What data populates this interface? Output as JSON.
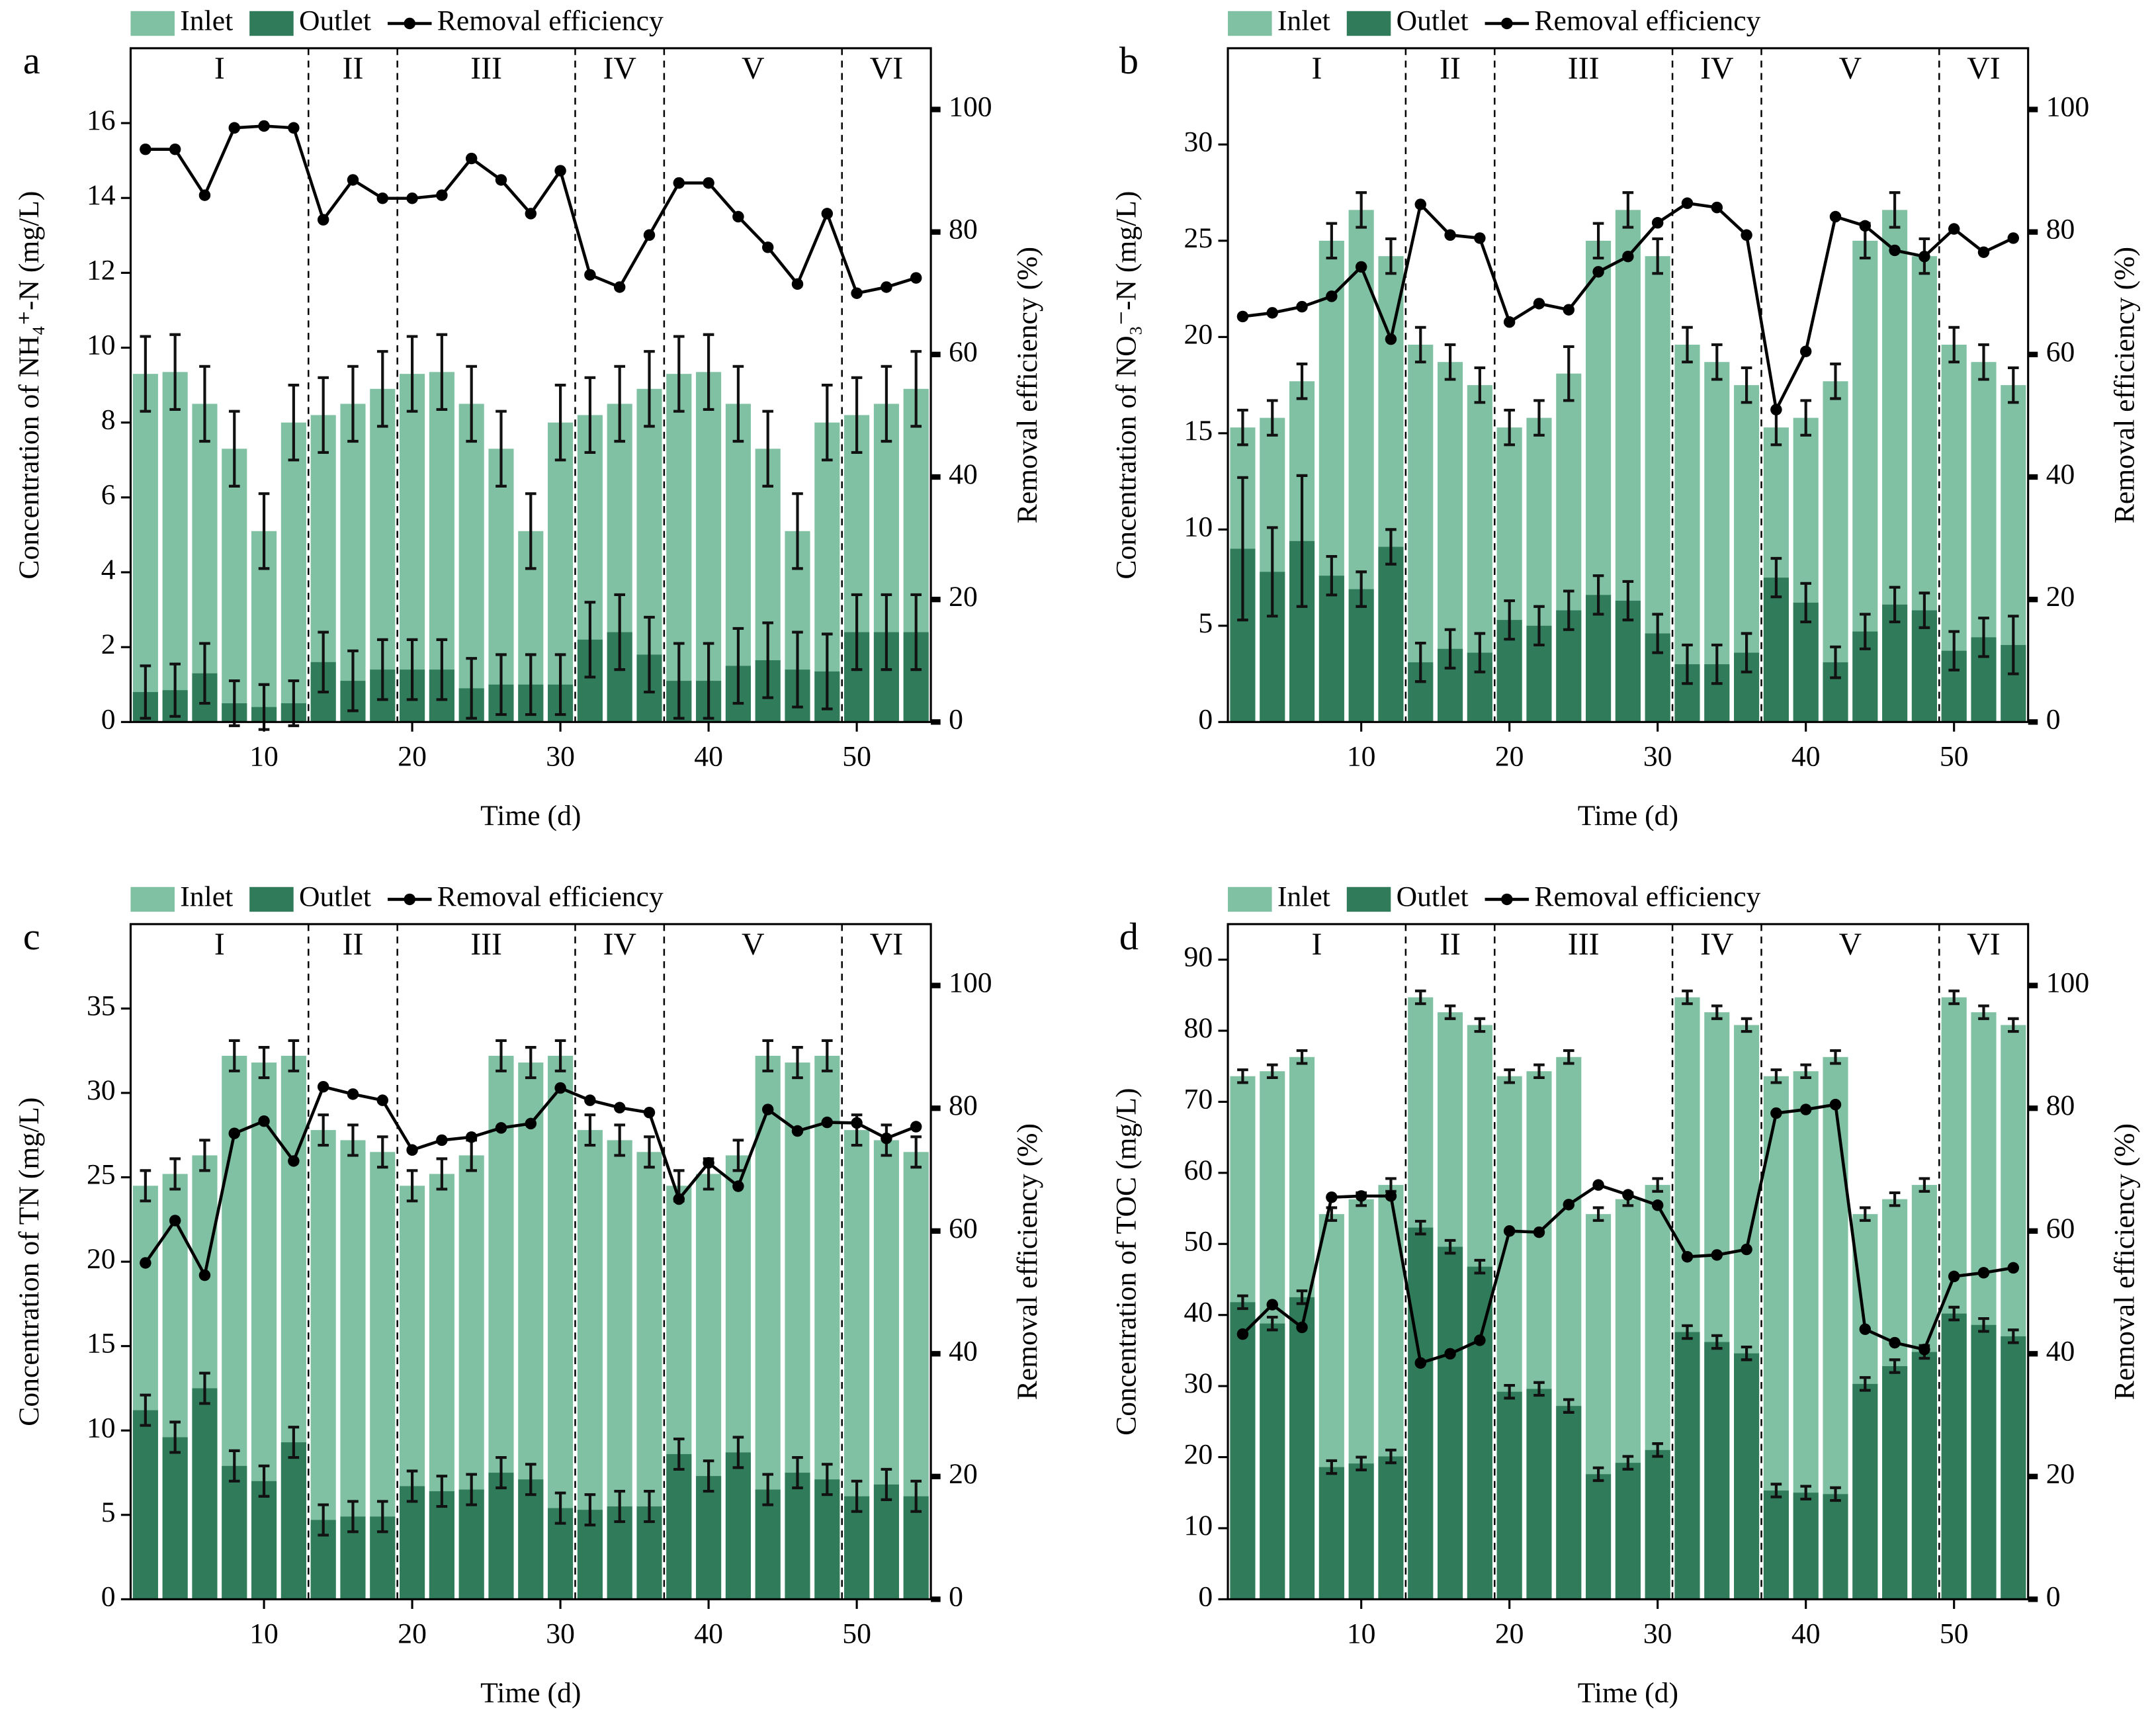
{
  "chart_data": [
    {
      "type": "bar",
      "letter": "a",
      "x": [
        2,
        4,
        6,
        8,
        10,
        12,
        14,
        16,
        18,
        20,
        22,
        24,
        26,
        28,
        30,
        32,
        34,
        36,
        38,
        40,
        42,
        44,
        46,
        48,
        50,
        52,
        54
      ],
      "xlim": [
        1,
        55
      ],
      "xticks": [
        10,
        20,
        30,
        40,
        50
      ],
      "ylim": [
        0,
        18
      ],
      "yticks": [
        0,
        2,
        4,
        6,
        8,
        10,
        12,
        14,
        16
      ],
      "y2lim": [
        0,
        110
      ],
      "y2ticks": [
        0,
        20,
        40,
        60,
        80,
        100
      ],
      "xlabel": "Time (d)",
      "ylabel": "Concentration of NH₄⁺-N (mg/L)",
      "y2label": "Removal efficiency (%)",
      "phases": [
        "I",
        "II",
        "III",
        "IV",
        "V",
        "VI"
      ],
      "phase_bounds": [
        13,
        19,
        31,
        37,
        49
      ],
      "series": [
        {
          "name": "Inlet",
          "color": "#80c1a3",
          "values": [
            9.3,
            9.35,
            8.5,
            7.3,
            5.1,
            8.0,
            8.2,
            8.5,
            8.9,
            9.3,
            9.35,
            8.5,
            7.3,
            5.1,
            8.0,
            8.2,
            8.5,
            8.9,
            9.3,
            9.35,
            8.5,
            7.3,
            5.1,
            8.0,
            8.2,
            8.5,
            8.9
          ],
          "errors": [
            1.0,
            1.0,
            1.0,
            1.0,
            1.0,
            1.0,
            1.0,
            1.0,
            1.0,
            1.0,
            1.0,
            1.0,
            1.0,
            1.0,
            1.0,
            1.0,
            1.0,
            1.0,
            1.0,
            1.0,
            1.0,
            1.0,
            1.0,
            1.0,
            1.0,
            1.0,
            1.0
          ]
        },
        {
          "name": "Outlet",
          "color": "#2f7b5a",
          "values": [
            0.8,
            0.85,
            1.3,
            0.5,
            0.4,
            0.5,
            1.6,
            1.1,
            1.4,
            1.4,
            1.4,
            0.9,
            1.0,
            1.0,
            1.0,
            2.2,
            2.4,
            1.8,
            1.1,
            1.1,
            1.5,
            1.65,
            1.4,
            1.35,
            2.4,
            2.4,
            2.4
          ],
          "errors": [
            0.7,
            0.7,
            0.8,
            0.6,
            0.6,
            0.6,
            0.8,
            0.8,
            0.8,
            0.8,
            0.8,
            0.8,
            0.8,
            0.8,
            0.8,
            1.0,
            1.0,
            1.0,
            1.0,
            1.0,
            1.0,
            1.0,
            1.0,
            1.0,
            1.0,
            1.0,
            1.0
          ]
        },
        {
          "name": "Removal efficiency",
          "type": "line",
          "axis": "y2",
          "color": "#000000",
          "values": [
            93.5,
            93.5,
            86,
            97,
            97.3,
            97,
            82,
            88.5,
            85.5,
            85.5,
            86,
            92,
            88.5,
            83,
            90,
            73,
            71,
            79.5,
            88,
            88,
            82.5,
            77.5,
            71.5,
            83,
            70,
            71,
            72.5
          ]
        }
      ]
    },
    {
      "type": "bar",
      "letter": "b",
      "x": [
        2,
        4,
        6,
        8,
        10,
        12,
        14,
        16,
        18,
        20,
        22,
        24,
        26,
        28,
        30,
        32,
        34,
        36,
        38,
        40,
        42,
        44,
        46,
        48,
        50,
        52,
        54
      ],
      "xlim": [
        1,
        55
      ],
      "xticks": [
        10,
        20,
        30,
        40,
        50
      ],
      "ylim": [
        0,
        35
      ],
      "yticks": [
        0,
        5,
        10,
        15,
        20,
        25,
        30
      ],
      "y2lim": [
        0,
        110
      ],
      "y2ticks": [
        0,
        20,
        40,
        60,
        80,
        100
      ],
      "xlabel": "Time (d)",
      "ylabel": "Concentration of NO₃⁻-N (mg/L)",
      "y2label": "Removal efficiency (%)",
      "phases": [
        "I",
        "II",
        "III",
        "IV",
        "V",
        "VI"
      ],
      "phase_bounds": [
        13,
        19,
        31,
        37,
        49
      ],
      "series": [
        {
          "name": "Inlet",
          "color": "#80c1a3",
          "values": [
            15.3,
            15.8,
            17.7,
            25,
            26.6,
            24.2,
            19.6,
            18.7,
            17.5,
            15.3,
            15.8,
            18.1,
            25,
            26.6,
            24.2,
            19.6,
            18.7,
            17.5,
            15.3,
            15.8,
            17.7,
            25,
            26.6,
            24.2,
            19.6,
            18.7,
            17.5
          ],
          "errors": [
            0.9,
            0.9,
            0.9,
            0.9,
            0.9,
            0.9,
            0.9,
            0.9,
            0.9,
            0.9,
            0.9,
            1.4,
            0.9,
            0.9,
            0.9,
            0.9,
            0.9,
            0.9,
            0.9,
            0.9,
            0.9,
            0.9,
            0.9,
            0.9,
            0.9,
            0.9,
            0.9
          ]
        },
        {
          "name": "Outlet",
          "color": "#2f7b5a",
          "values": [
            9.0,
            7.8,
            9.4,
            7.6,
            6.9,
            9.1,
            3.1,
            3.8,
            3.6,
            5.3,
            5.0,
            5.8,
            6.6,
            6.3,
            4.6,
            3.0,
            3.0,
            3.6,
            7.5,
            6.2,
            3.1,
            4.7,
            6.1,
            5.8,
            3.7,
            4.4,
            4.0
          ],
          "errors": [
            3.7,
            2.3,
            3.4,
            1.0,
            0.9,
            0.9,
            1.0,
            1.0,
            1.0,
            1.0,
            1.0,
            1.0,
            1.0,
            1.0,
            1.0,
            1.0,
            1.0,
            1.0,
            1.0,
            1.0,
            0.8,
            0.9,
            0.9,
            0.9,
            1.0,
            1.0,
            1.5
          ]
        },
        {
          "name": "Removal efficiency",
          "type": "line",
          "axis": "y2",
          "color": "#000000",
          "values": [
            66.2,
            66.8,
            67.8,
            69.5,
            74.3,
            62.5,
            84.5,
            79.5,
            79,
            65.3,
            68.3,
            67.3,
            73.5,
            76,
            81.5,
            84.7,
            84,
            79.5,
            51,
            60.5,
            82.5,
            81,
            77,
            76,
            80.5,
            76.7,
            79
          ]
        }
      ]
    },
    {
      "type": "bar",
      "letter": "c",
      "x": [
        2,
        4,
        6,
        8,
        10,
        12,
        14,
        16,
        18,
        20,
        22,
        24,
        26,
        28,
        30,
        32,
        34,
        36,
        38,
        40,
        42,
        44,
        46,
        48,
        50,
        52,
        54
      ],
      "xlim": [
        1,
        55
      ],
      "xticks": [
        10,
        20,
        30,
        40,
        50
      ],
      "ylim": [
        0,
        40
      ],
      "yticks": [
        0,
        5,
        10,
        15,
        20,
        25,
        30,
        35
      ],
      "y2lim": [
        0,
        110
      ],
      "y2ticks": [
        0,
        20,
        40,
        60,
        80,
        100
      ],
      "xlabel": "Time (d)",
      "ylabel": "Concentration of TN (mg/L)",
      "y2label": "Removal efficiency (%)",
      "phases": [
        "I",
        "II",
        "III",
        "IV",
        "V",
        "VI"
      ],
      "phase_bounds": [
        13,
        19,
        31,
        37,
        49
      ],
      "series": [
        {
          "name": "Inlet",
          "color": "#80c1a3",
          "values": [
            24.5,
            25.2,
            26.3,
            32.2,
            31.8,
            32.2,
            27.8,
            27.2,
            26.5,
            24.5,
            25.2,
            26.3,
            32.2,
            31.8,
            32.2,
            27.8,
            27.2,
            26.5,
            24.5,
            25.2,
            26.3,
            32.2,
            31.8,
            32.2,
            27.8,
            27.2,
            26.5
          ],
          "errors": [
            0.9,
            0.9,
            0.9,
            0.9,
            0.9,
            0.9,
            0.9,
            0.9,
            0.9,
            0.9,
            0.9,
            0.9,
            0.9,
            0.9,
            0.9,
            0.9,
            0.9,
            0.9,
            0.9,
            0.9,
            0.9,
            0.9,
            0.9,
            0.9,
            0.9,
            0.9,
            0.9
          ]
        },
        {
          "name": "Outlet",
          "color": "#2f7b5a",
          "values": [
            11.2,
            9.6,
            12.5,
            7.9,
            7.0,
            9.3,
            4.7,
            4.9,
            4.9,
            6.7,
            6.4,
            6.5,
            7.5,
            7.1,
            5.4,
            5.3,
            5.5,
            5.5,
            8.6,
            7.3,
            8.7,
            6.5,
            7.5,
            7.1,
            6.1,
            6.8,
            6.1
          ],
          "errors": [
            0.9,
            0.9,
            0.9,
            0.9,
            0.9,
            0.9,
            0.9,
            0.9,
            0.9,
            0.9,
            0.9,
            0.9,
            0.9,
            0.9,
            0.9,
            0.9,
            0.9,
            0.9,
            0.9,
            0.9,
            0.9,
            0.9,
            0.9,
            0.9,
            0.9,
            0.9,
            0.9
          ]
        },
        {
          "name": "Removal efficiency",
          "type": "line",
          "axis": "y2",
          "color": "#000000",
          "values": [
            54.8,
            61.7,
            52.8,
            75.9,
            77.9,
            71.4,
            83.5,
            82.3,
            81.3,
            73.2,
            74.8,
            75.3,
            76.8,
            77.5,
            83.3,
            81.3,
            80.1,
            79.3,
            65.2,
            71.1,
            67.3,
            79.8,
            76.3,
            77.7,
            77.6,
            75.1,
            77.0
          ]
        }
      ]
    },
    {
      "type": "bar",
      "letter": "d",
      "x": [
        2,
        4,
        6,
        8,
        10,
        12,
        14,
        16,
        18,
        20,
        22,
        24,
        26,
        28,
        30,
        32,
        34,
        36,
        38,
        40,
        42,
        44,
        46,
        48,
        50,
        52,
        54
      ],
      "xlim": [
        1,
        55
      ],
      "xticks": [
        10,
        20,
        30,
        40,
        50
      ],
      "ylim": [
        0,
        95
      ],
      "yticks": [
        0,
        10,
        20,
        30,
        40,
        50,
        60,
        70,
        80,
        90
      ],
      "y2lim": [
        0,
        110
      ],
      "y2ticks": [
        0,
        20,
        40,
        60,
        80,
        100
      ],
      "xlabel": "Time (d)",
      "ylabel": "Concentration of TOC (mg/L)",
      "y2label": "Removal efficiency (%)",
      "phases": [
        "I",
        "II",
        "III",
        "IV",
        "V",
        "VI"
      ],
      "phase_bounds": [
        13,
        19,
        31,
        37,
        49
      ],
      "series": [
        {
          "name": "Inlet",
          "color": "#80c1a3",
          "values": [
            73.6,
            74.3,
            76.3,
            54.2,
            56.3,
            58.3,
            84.7,
            82.6,
            80.8,
            73.6,
            74.3,
            76.3,
            54.2,
            56.3,
            58.3,
            84.7,
            82.6,
            80.8,
            73.6,
            74.3,
            76.3,
            54.2,
            56.3,
            58.3,
            84.7,
            82.6,
            80.8
          ],
          "errors": [
            0.9,
            0.9,
            0.9,
            0.9,
            0.9,
            0.9,
            0.9,
            0.9,
            0.9,
            0.9,
            0.9,
            0.9,
            0.9,
            0.9,
            0.9,
            0.9,
            0.9,
            0.9,
            0.9,
            0.9,
            0.9,
            0.9,
            0.9,
            0.9,
            0.9,
            0.9,
            0.9
          ]
        },
        {
          "name": "Outlet",
          "color": "#2f7b5a",
          "values": [
            41.8,
            38.8,
            42.5,
            18.6,
            19.1,
            20.1,
            52.3,
            49.6,
            46.8,
            29.2,
            29.6,
            27.2,
            17.6,
            19.2,
            21.0,
            37.6,
            36.2,
            34.6,
            15.3,
            15.0,
            14.8,
            30.3,
            32.8,
            34.8,
            40.2,
            38.6,
            37.0
          ],
          "errors": [
            0.9,
            0.9,
            0.9,
            0.9,
            0.9,
            0.9,
            0.9,
            0.9,
            0.9,
            0.9,
            0.9,
            0.9,
            0.9,
            0.9,
            0.9,
            0.9,
            0.9,
            0.9,
            0.9,
            0.9,
            0.9,
            0.9,
            0.9,
            0.9,
            0.9,
            0.9,
            0.9
          ]
        },
        {
          "name": "Removal efficiency",
          "type": "line",
          "axis": "y2",
          "color": "#000000",
          "values": [
            43.2,
            48.0,
            44.3,
            65.5,
            65.7,
            65.7,
            38.5,
            40.0,
            42.2,
            60.0,
            59.8,
            64.3,
            67.5,
            65.9,
            64.2,
            55.8,
            56.1,
            57.0,
            79.2,
            79.8,
            80.6,
            44.0,
            41.8,
            40.7,
            52.6,
            53.2,
            54.0
          ]
        }
      ]
    }
  ]
}
